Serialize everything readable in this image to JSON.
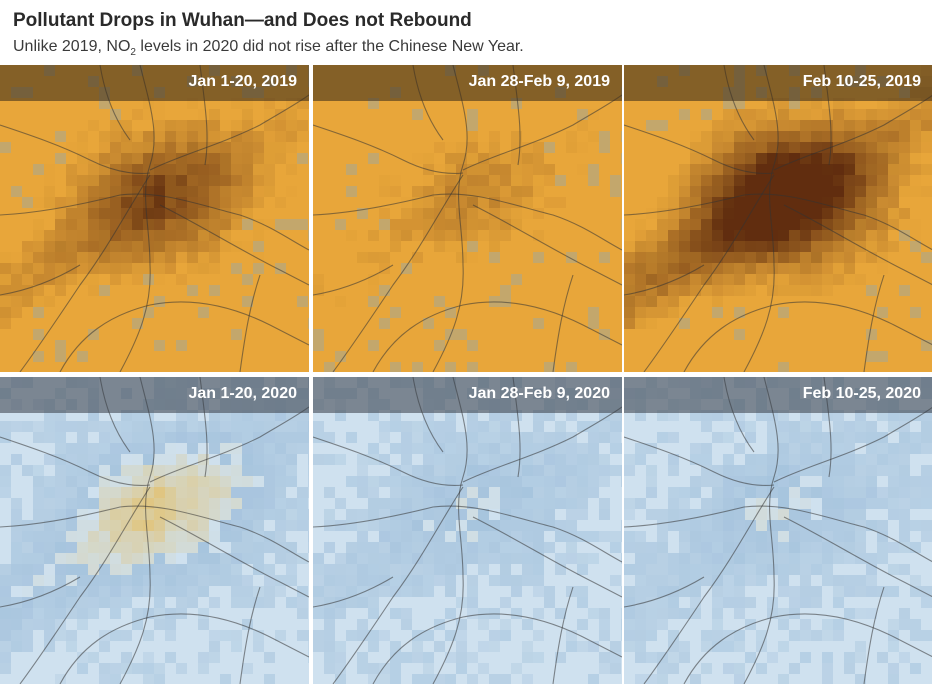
{
  "title": "Pollutant Drops in Wuhan—and Does not Rebound",
  "subtitle": {
    "before": "Unlike 2019, NO",
    "sub": "2",
    "after": " levels in 2020 did not rise after the Chinese New Year."
  },
  "panels": [
    {
      "label": "Jan 1-20, 2019",
      "year": 2019,
      "intensity": 0.55
    },
    {
      "label": "Jan 28-Feb 9, 2019",
      "year": 2019,
      "intensity": 0.25
    },
    {
      "label": "Feb 10-25, 2019",
      "year": 2019,
      "intensity": 0.95
    },
    {
      "label": "Jan 1-20, 2020",
      "year": 2020,
      "intensity": 0.45
    },
    {
      "label": "Jan 28-Feb 9, 2020",
      "year": 2020,
      "intensity": 0.2
    },
    {
      "label": "Feb 10-25, 2020",
      "year": 2020,
      "intensity": 0.2
    }
  ],
  "colors": {
    "base_2019": "#e8a63a",
    "hot_2019": "#4a1a08",
    "base_2020": "#cfe1ef",
    "accent_2020": "#e8b84a",
    "cool_blue": "#7fa8cc",
    "roads": "#333333"
  }
}
